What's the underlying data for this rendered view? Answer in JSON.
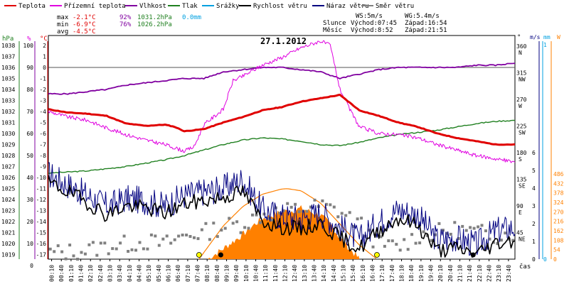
{
  "legend": [
    {
      "label": "Teplota",
      "color": "#e00000"
    },
    {
      "label": "Přízemní teplota",
      "color": "#e000e0"
    },
    {
      "label": "Vlhkost",
      "color": "#8000a0"
    },
    {
      "label": "Tlak",
      "color": "#208020"
    },
    {
      "label": "Srážky",
      "color": "#00a0e0"
    },
    {
      "label": "Rychlost větru",
      "color": "#000000"
    },
    {
      "label": "Náraz větru",
      "color": "#000080"
    },
    {
      "label": "Směr větru",
      "color": "#808080"
    }
  ],
  "stats": {
    "max": {
      "label": "max",
      "temp": "-2.1°C",
      "hum": "92%",
      "press": "1031.2hPa",
      "rain": "0.0mm"
    },
    "min": {
      "label": "min",
      "temp": "-6.9°C",
      "hum": "76%",
      "press": "1026.2hPa"
    },
    "avg": {
      "label": "avg",
      "temp": "-4.5°C"
    }
  },
  "wind_info": {
    "ws": "WS:5m/s",
    "wg": "WG:5.4m/s",
    "sun_label": "Slunce",
    "sun_rise": "Východ:07:45",
    "sun_set": "Západ:16:54",
    "moon_label": "Měsíc",
    "moon_rise": "Východ:8:52",
    "moon_set": "Západ:21:51"
  },
  "date_title": "27.1.2012",
  "axes": {
    "hpa": {
      "unit": "hPa",
      "ticks": [
        "1038",
        "1037",
        "1036",
        "1035",
        "1034",
        "1033",
        "1032",
        "1031",
        "1030",
        "1029",
        "1028",
        "1027",
        "1026",
        "1025",
        "1024",
        "1023",
        "1022",
        "1021",
        "1020",
        "1019"
      ]
    },
    "percent": {
      "unit": "%",
      "ticks": [
        "100",
        "90",
        "80",
        "70",
        "60",
        "50",
        "40",
        "30",
        "20",
        "10",
        "0"
      ]
    },
    "celsius": {
      "unit": "°C",
      "ticks": [
        "2",
        "1",
        "0",
        "-1",
        "-2",
        "-3",
        "-4",
        "-5",
        "-6",
        "-7",
        "-8",
        "-9",
        "-10",
        "-11",
        "-12",
        "-13",
        "-14",
        "-15",
        "-16",
        "-17"
      ]
    },
    "direction": {
      "unit": "°",
      "ticks": [
        {
          "deg": "360",
          "dir": "N"
        },
        {
          "deg": "315",
          "dir": "NW"
        },
        {
          "deg": "270",
          "dir": "W"
        },
        {
          "deg": "225",
          "dir": "SW"
        },
        {
          "deg": "180",
          "dir": "S"
        },
        {
          "deg": "135",
          "dir": "SE"
        },
        {
          "deg": "90",
          "dir": "E"
        },
        {
          "deg": "45",
          "dir": "NE"
        }
      ]
    },
    "ms": {
      "unit": "m/s",
      "ticks": [
        "6",
        "5",
        "4",
        "3",
        "2",
        "1",
        "0"
      ]
    },
    "mm": {
      "unit": "mm",
      "ticks": [
        "1",
        "0"
      ]
    },
    "w": {
      "unit": "W",
      "ticks": [
        "486",
        "432",
        "378",
        "324",
        "270",
        "216",
        "162",
        "108",
        "54",
        "0"
      ]
    },
    "time": {
      "unit": "čas",
      "ticks": [
        "00:10",
        "00:40",
        "01:10",
        "01:40",
        "02:10",
        "02:40",
        "03:10",
        "03:40",
        "04:10",
        "04:40",
        "05:10",
        "05:40",
        "06:10",
        "06:40",
        "07:10",
        "07:40",
        "08:10",
        "08:40",
        "09:10",
        "09:40",
        "10:10",
        "10:40",
        "11:10",
        "11:40",
        "12:10",
        "12:40",
        "13:10",
        "13:40",
        "14:10",
        "14:40",
        "15:10",
        "15:40",
        "16:10",
        "16:40",
        "17:10",
        "17:40",
        "18:10",
        "18:40",
        "19:10",
        "19:40",
        "20:10",
        "20:40",
        "21:10",
        "21:40",
        "22:10",
        "22:40",
        "23:10",
        "23:40"
      ]
    }
  },
  "chart_data": {
    "type": "line",
    "title": "27.1.2012",
    "x_range_hours": [
      0,
      24
    ],
    "series": [
      {
        "name": "Teplota",
        "unit": "°C",
        "color": "#e00000",
        "x": [
          0,
          1,
          2,
          3,
          4,
          5,
          6,
          6.5,
          7,
          8,
          9,
          10,
          11,
          12,
          13,
          14,
          15,
          15.5,
          16,
          17,
          18,
          19,
          20,
          21,
          22,
          23,
          24
        ],
        "y": [
          -3.8,
          -4.1,
          -4.2,
          -4.4,
          -5.1,
          -5.3,
          -5.2,
          -5.4,
          -5.8,
          -5.6,
          -5.0,
          -4.5,
          -3.9,
          -3.6,
          -3.1,
          -2.8,
          -2.5,
          -3.2,
          -3.9,
          -4.4,
          -5.0,
          -5.4,
          -6.0,
          -6.4,
          -6.7,
          -7.0,
          -7.0
        ]
      },
      {
        "name": "Přízemní teplota",
        "unit": "°C",
        "color": "#e000e0",
        "x": [
          0,
          1,
          2,
          3,
          4,
          5,
          6,
          7,
          7.5,
          8,
          9,
          9.5,
          10,
          11,
          12,
          13,
          14,
          14.5,
          15,
          15.5,
          16,
          17,
          18,
          19,
          20,
          21,
          22,
          23,
          24
        ],
        "y": [
          -4.0,
          -4.5,
          -4.8,
          -5.5,
          -6.1,
          -6.6,
          -7.0,
          -7.6,
          -7.2,
          -5.2,
          -3.8,
          -1.2,
          -0.8,
          0.2,
          0.9,
          1.8,
          2.4,
          2.0,
          -2.0,
          -3.8,
          -5.4,
          -6.0,
          -6.1,
          -6.4,
          -7.0,
          -7.5,
          -8.0,
          -8.3,
          -8.6
        ]
      },
      {
        "name": "Vlhkost",
        "unit": "%",
        "color": "#8000a0",
        "x": [
          0,
          1,
          2,
          3,
          4,
          5,
          6,
          7,
          8,
          9,
          10,
          11,
          12,
          13,
          14,
          15,
          16,
          17,
          18,
          19,
          20,
          21,
          22,
          23,
          24
        ],
        "y": [
          78,
          78,
          79,
          80,
          82,
          83,
          84,
          85,
          85,
          88,
          89,
          90,
          90,
          89,
          88,
          85,
          87,
          89,
          90,
          90,
          90,
          90,
          91,
          91,
          92
        ]
      },
      {
        "name": "Tlak",
        "unit": "hPa",
        "color": "#208020",
        "x": [
          0,
          1,
          2,
          3,
          4,
          5,
          6,
          7,
          8,
          9,
          10,
          11,
          12,
          13,
          14,
          15,
          16,
          17,
          18,
          19,
          20,
          21,
          22,
          23,
          24
        ],
        "y": [
          1026.4,
          1026.5,
          1026.6,
          1026.8,
          1027.0,
          1027.3,
          1027.6,
          1028.0,
          1028.5,
          1029.0,
          1029.4,
          1029.6,
          1029.5,
          1029.3,
          1029.0,
          1028.9,
          1029.2,
          1029.6,
          1029.9,
          1030.1,
          1030.3,
          1030.6,
          1030.9,
          1031.1,
          1031.2
        ]
      },
      {
        "name": "Rychlost větru",
        "unit": "m/s",
        "color": "#000000",
        "x": [
          0,
          1,
          2,
          3,
          4,
          5,
          6,
          7,
          8,
          9,
          10,
          11,
          12,
          13,
          14,
          15,
          16,
          17,
          18,
          19,
          20,
          21,
          22,
          23,
          24
        ],
        "y": [
          4.3,
          3.8,
          3.2,
          2.5,
          3.0,
          2.9,
          2.6,
          3.1,
          3.3,
          3.5,
          3.8,
          2.2,
          1.8,
          1.7,
          2.0,
          1.2,
          0.6,
          1.6,
          2.3,
          1.9,
          0.5,
          0.6,
          0.3,
          0.9,
          1.1
        ]
      },
      {
        "name": "Náraz větru",
        "unit": "m/s",
        "color": "#000080",
        "x": [
          0,
          1,
          2,
          3,
          4,
          5,
          6,
          7,
          8,
          9,
          10,
          11,
          12,
          13,
          14,
          15,
          16,
          17,
          18,
          19,
          20,
          21,
          22,
          23,
          24
        ],
        "y": [
          4.8,
          4.2,
          3.6,
          3.0,
          3.4,
          3.3,
          3.0,
          3.6,
          3.8,
          4.0,
          4.5,
          2.8,
          2.4,
          2.3,
          2.6,
          1.8,
          1.1,
          2.1,
          2.8,
          2.5,
          1.1,
          1.2,
          0.8,
          1.6,
          1.8
        ]
      },
      {
        "name": "Směr větru",
        "unit": "°",
        "color": "#808080",
        "x": [
          0,
          1,
          2,
          3,
          4,
          5,
          6,
          7,
          8,
          9,
          10,
          11,
          12,
          13,
          14,
          15,
          16,
          17,
          18,
          19,
          20,
          21,
          22,
          23,
          24
        ],
        "y": [
          10,
          12,
          15,
          22,
          25,
          30,
          25,
          40,
          45,
          55,
          60,
          75,
          80,
          85,
          90,
          80,
          60,
          25,
          20,
          40,
          45,
          50,
          45,
          40,
          45
        ]
      },
      {
        "name": "Srážky",
        "unit": "mm",
        "color": "#00a0e0",
        "x": [
          0,
          24
        ],
        "y": [
          0,
          0
        ]
      },
      {
        "name": "Solar radiation",
        "unit": "W",
        "color": "#ff8000",
        "area": true,
        "x": [
          8.2,
          9,
          10,
          10.5,
          11,
          11.5,
          12,
          12.5,
          13,
          13.5,
          14,
          14.5,
          15,
          15.5,
          16
        ],
        "y": [
          0,
          60,
          140,
          190,
          230,
          250,
          270,
          275,
          290,
          270,
          250,
          200,
          120,
          60,
          0
        ]
      },
      {
        "name": "Theoretical solar",
        "unit": "W",
        "color": "#ff8000",
        "area": false,
        "x": [
          7.75,
          9,
          10,
          11,
          12,
          12.3,
          13,
          14,
          15,
          16,
          16.9
        ],
        "y": [
          0,
          190,
          300,
          370,
          400,
          402,
          390,
          320,
          200,
          80,
          0
        ]
      }
    ],
    "legend_placement": "top",
    "grid": false
  }
}
